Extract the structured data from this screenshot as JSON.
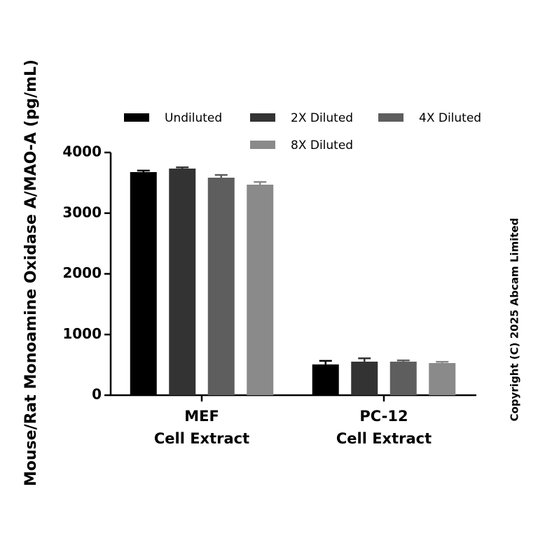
{
  "chart_data": {
    "type": "bar",
    "y_label": "Mouse/Rat Monoamine Oxidase A/MAO-A (pg/mL)",
    "annotations": [
      "Copyright (C) 2025 Abcam Limited"
    ],
    "categories": [
      [
        "MEF",
        "Cell Extract"
      ],
      [
        "PC-12",
        "Cell Extract"
      ]
    ],
    "series": [
      {
        "name": "Undiluted",
        "color": "#000000",
        "values": [
          3677,
          507
        ],
        "errors": [
          25,
          60
        ]
      },
      {
        "name": "2X Diluted",
        "color": "#333333",
        "values": [
          3735,
          553
        ],
        "errors": [
          20,
          55
        ]
      },
      {
        "name": "4X Diluted",
        "color": "#5e5e5e",
        "values": [
          3585,
          553
        ],
        "errors": [
          45,
          20
        ]
      },
      {
        "name": "8X Diluted",
        "color": "#8a8a8a",
        "values": [
          3470,
          530
        ],
        "errors": [
          45,
          20
        ]
      }
    ],
    "ylim": [
      0,
      4000
    ],
    "yticks": [
      0,
      1000,
      2000,
      3000,
      4000
    ]
  }
}
